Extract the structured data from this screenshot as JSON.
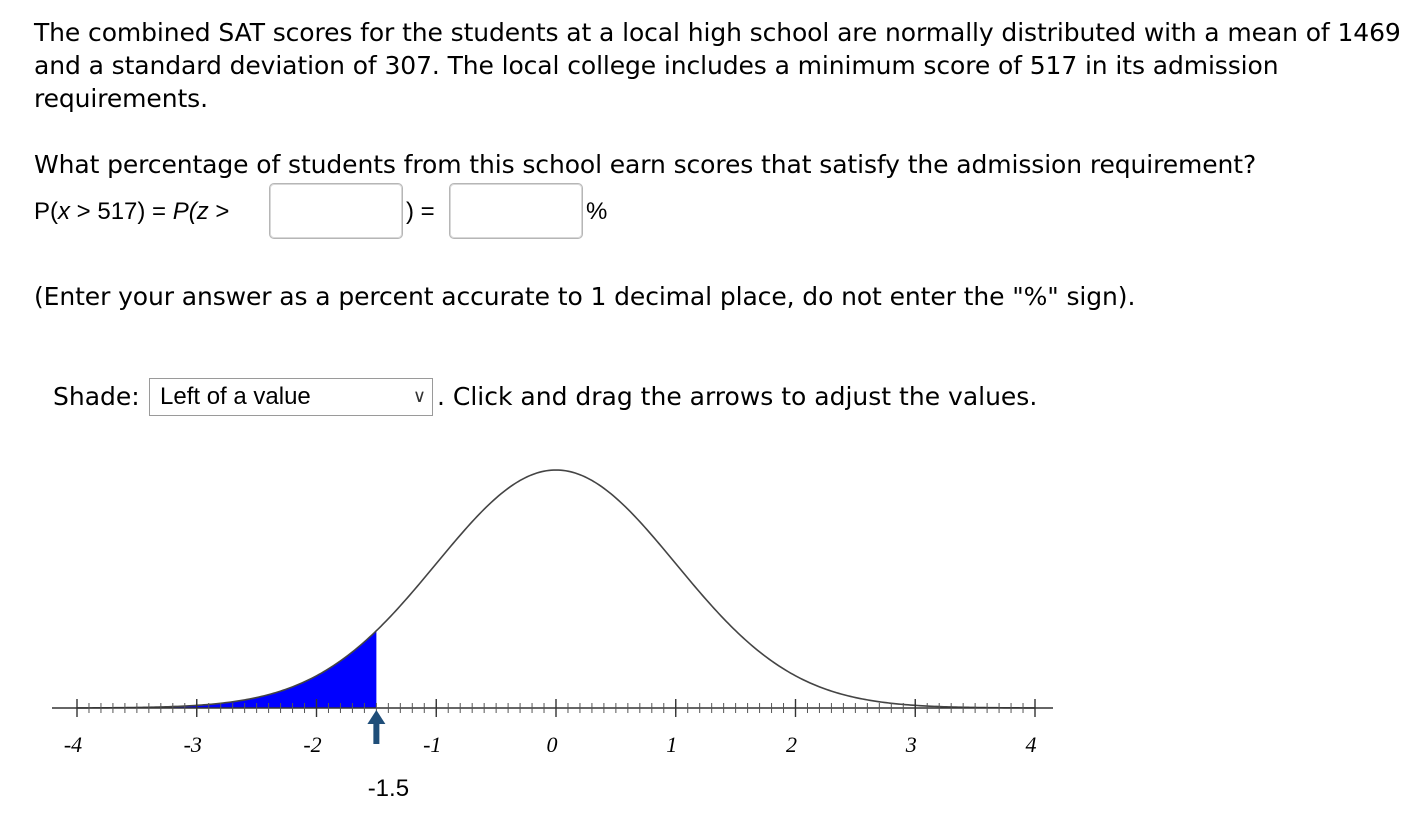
{
  "problem": {
    "text": "The combined SAT scores for the students at a local high school are normally distributed with a mean of 1469 and a standard deviation of 307. The local college includes a minimum score of 517 in its admission requirements.",
    "question": "What percentage of students from this school earn scores that satisfy the admission requirement?",
    "equation": {
      "lhs_open": "P(",
      "lhs_var": "x",
      "lhs_rest": " > 517) = ",
      "rhs_func": "P(",
      "rhs_var": "z",
      "rhs_op": " >",
      "close": ") =",
      "percent_sign": "%",
      "z_value": "",
      "percent_value": ""
    },
    "note": "(Enter your answer as a percent accurate to 1 decimal place, do not enter the \"%\" sign)."
  },
  "shade": {
    "label": "Shade:",
    "selected": "Left of a value",
    "instruction": ". Click and drag the arrows to adjust the values."
  },
  "chart_data": {
    "type": "area",
    "distribution": "standard normal",
    "mean": 0,
    "sd": 1,
    "xlim": [
      -4,
      4
    ],
    "x_ticks": [
      -4,
      -3,
      -2,
      -1,
      0,
      1,
      2,
      3,
      4
    ],
    "x_tick_labels": [
      "-4",
      "-3",
      "-2",
      "-1",
      "0",
      "1",
      "2",
      "3",
      "4"
    ],
    "minor_tick_step": 0.1,
    "shade_mode": "left",
    "shade_value": -1.5,
    "marker_label": "-1.5",
    "shade_color": "#0000ff",
    "curve_color": "#444444",
    "marker_color": "#1f4e79"
  }
}
